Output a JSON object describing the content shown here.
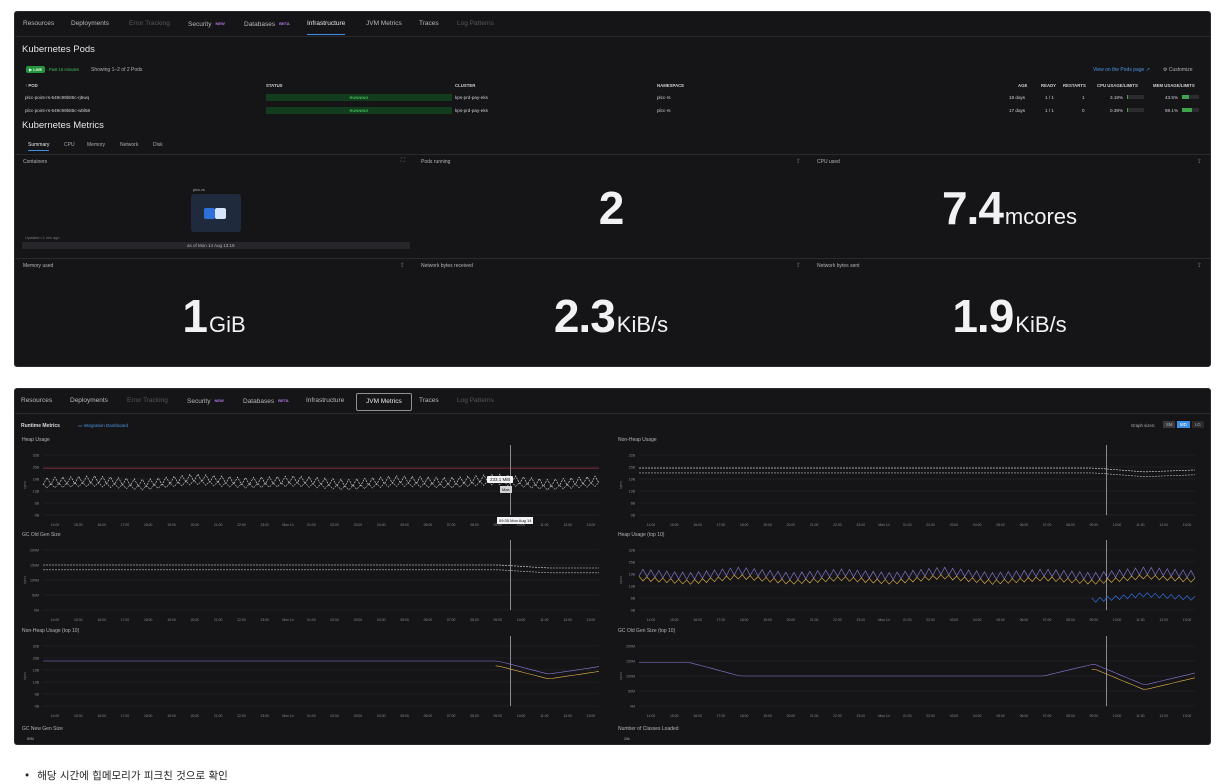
{
  "tabs_top": [
    {
      "label": "Resources",
      "state": "normal"
    },
    {
      "label": "Deployments",
      "state": "normal"
    },
    {
      "label": "Error Tracking",
      "state": "dim"
    },
    {
      "label": "Security",
      "badge": "NEW",
      "state": "normal"
    },
    {
      "label": "Databases",
      "badge": "BETA",
      "state": "normal"
    },
    {
      "label": "Infrastructure",
      "state": "active"
    },
    {
      "label": "JVM Metrics",
      "state": "normal"
    },
    {
      "label": "Traces",
      "state": "normal"
    },
    {
      "label": "Log Patterns",
      "state": "dim"
    }
  ],
  "tabs_bottom": [
    {
      "label": "Resources",
      "state": "normal"
    },
    {
      "label": "Deployments",
      "state": "normal"
    },
    {
      "label": "Error Tracking",
      "state": "dim"
    },
    {
      "label": "Security",
      "badge": "NEW",
      "state": "normal"
    },
    {
      "label": "Databases",
      "badge": "BETA",
      "state": "normal"
    },
    {
      "label": "Infrastructure",
      "state": "normal"
    },
    {
      "label": "JVM Metrics",
      "state": "active"
    },
    {
      "label": "Traces",
      "state": "normal"
    },
    {
      "label": "Log Patterns",
      "state": "dim"
    }
  ],
  "pods": {
    "title": "Kubernetes Pods",
    "live": "LIVE",
    "range": "Past 15 minutes",
    "showing": "Showing 1–2 of 2 Pods",
    "view_link": "View on the Pods page",
    "customize": "Customize",
    "columns": {
      "pod": "POD",
      "status": "STATUS",
      "cluster": "CLUSTER",
      "namespace": "NAMESPACE",
      "age": "AGE",
      "ready": "READY",
      "restarts": "RESTARTS",
      "cpu": "CPU USAGE/LIMITS",
      "mem": "MEM USAGE/LIMITS"
    },
    "rows": [
      {
        "pod": "plcc-point-rs-649c99b85c-rj5wq",
        "status": "RUNNING",
        "cluster": "kps-prd-pay-eks",
        "namespace": "plcc-rs",
        "age": "18 days",
        "ready": "1 / 1",
        "restarts": "1",
        "cpu": "3.19%",
        "cpu_fill": 0.03,
        "mem": "43.5%",
        "mem_fill": 0.435
      },
      {
        "pod": "plcc-point-rs-649c99b85c-wbl58",
        "status": "RUNNING",
        "cluster": "kps-prd-pay-eks",
        "namespace": "plcc-rs",
        "age": "17 days",
        "ready": "1 / 1",
        "restarts": "0",
        "cpu": "0.39%",
        "cpu_fill": 0.004,
        "mem": "59.1%",
        "mem_fill": 0.591
      }
    ]
  },
  "metrics": {
    "title": "Kubernetes Metrics",
    "subtabs": [
      "Summary",
      "CPU",
      "Memory",
      "Network",
      "Disk"
    ],
    "containers_title": "Containers",
    "hexmap_label": "plcc-rs",
    "updated": "Updated • 1 min ago",
    "asof": "as of Mon 14 Aug 13:19",
    "pods_running_title": "Pods running",
    "pods_running": "2",
    "cpu_title": "CPU used",
    "cpu_value": "7.4",
    "cpu_unit": "mcores",
    "mem_title": "Memory used",
    "mem_value": "1",
    "mem_unit": "GiB",
    "net_rx_title": "Network bytes received",
    "net_rx_value": "2.3",
    "net_rx_unit": "KiB/s",
    "net_tx_title": "Network bytes sent",
    "net_tx_value": "1.9",
    "net_tx_unit": "KiB/s"
  },
  "runtime": {
    "title": "Runtime Metrics",
    "dashboard_link": "Integration Dashboard",
    "graph_size_label": "Graph sizes:",
    "sizes": [
      "SM",
      "MD",
      "LG"
    ],
    "active_size": "MD",
    "tooltip_value": "233.1 MiB",
    "tooltip_max": "Max",
    "tooltip_time": "09:35 Mon Aug 14",
    "y_axis_label": "bytes"
  },
  "chart_data": [
    {
      "type": "line",
      "title": "Heap Usage",
      "y_ticks": [
        "0B",
        "6B",
        "13B",
        "19B",
        "25B",
        "32B"
      ],
      "ylim": [
        0,
        32
      ],
      "series": [
        {
          "values": [
            18,
            19,
            17,
            20,
            18,
            19,
            17,
            19,
            18,
            20,
            17,
            19
          ]
        }
      ]
    },
    {
      "type": "line",
      "title": "Non-Heap Usage",
      "y_ticks": [
        "0B",
        "6B",
        "13B",
        "19B",
        "25B",
        "32B"
      ],
      "ylim": [
        0,
        32
      ],
      "series": [
        {
          "values": [
            25,
            25,
            25,
            25,
            25,
            25,
            25,
            25,
            25,
            25,
            23,
            24
          ]
        }
      ]
    },
    {
      "type": "line",
      "title": "GC Old Gen Size",
      "y_ticks": [
        "0M",
        "50M",
        "100M",
        "150M",
        "200M"
      ],
      "ylim": [
        0,
        200
      ],
      "series": [
        {
          "values": [
            150,
            150,
            150,
            150,
            150,
            150,
            150,
            150,
            150,
            150,
            140,
            140
          ]
        }
      ]
    },
    {
      "type": "line",
      "title": "Heap Usage (top 10)",
      "y_ticks": [
        "0B",
        "6B",
        "13B",
        "19B",
        "25B",
        "32B"
      ],
      "ylim": [
        0,
        32
      ],
      "series": [
        {
          "values": [
            20,
            18,
            21,
            18,
            20,
            18,
            21,
            18,
            20,
            18,
            21,
            19
          ]
        }
      ]
    },
    {
      "type": "line",
      "title": "Non-Heap Usage (top 10)",
      "y_ticks": [
        "0B",
        "6B",
        "13B",
        "19B",
        "25B",
        "32B"
      ],
      "ylim": [
        0,
        32
      ],
      "series": [
        {
          "values": [
            24,
            24,
            24,
            24,
            24,
            24,
            24,
            24,
            24,
            24,
            17,
            21
          ]
        }
      ]
    },
    {
      "type": "line",
      "title": "GC Old Gen Size (top 10)",
      "y_ticks": [
        "0M",
        "50M",
        "100M",
        "150M",
        "200M"
      ],
      "ylim": [
        0,
        200
      ],
      "series": [
        {
          "values": [
            145,
            145,
            100,
            100,
            100,
            100,
            100,
            100,
            100,
            140,
            70,
            110
          ]
        }
      ]
    }
  ],
  "x_ticks": [
    "14:00",
    "15:00",
    "16:00",
    "17:00",
    "18:00",
    "19:00",
    "20:00",
    "21:00",
    "22:00",
    "23:00",
    "Mon 14",
    "01:00",
    "02:00",
    "03:00",
    "04:00",
    "05:00",
    "06:00",
    "07:00",
    "08:00",
    "09:00",
    "10:00",
    "11:00",
    "12:00",
    "13:00"
  ],
  "lower_titles": {
    "left": "GC New Gen Size",
    "right": "Number of Classes Loaded",
    "left_tick": "80M",
    "right_tick": "20k"
  },
  "colors": {
    "accent": "#3d8fe0",
    "live": "#24953a",
    "redline": "#d9414a",
    "yellow": "#e7b84a",
    "purple": "#8f7bd8",
    "blue": "#2f6fd8"
  },
  "note": "해당 시간에 힙메모리가 피크친 것으로 확인"
}
